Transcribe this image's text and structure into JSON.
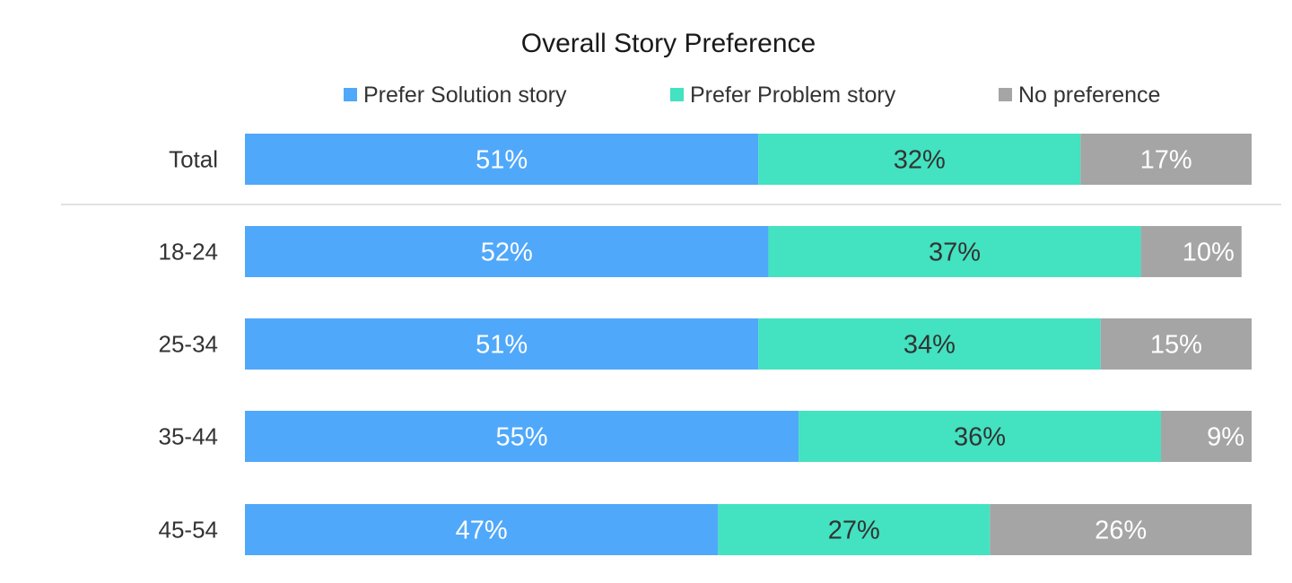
{
  "chart_data": {
    "type": "bar",
    "orientation": "horizontal",
    "stacked": true,
    "title": "Overall Story Preference",
    "categories": [
      "Total",
      "18-24",
      "25-34",
      "35-44",
      "45-54"
    ],
    "series": [
      {
        "name": "Prefer Solution story",
        "color": "#50a8fa",
        "label_color": "#ffffff",
        "values": [
          51,
          52,
          51,
          55,
          47
        ]
      },
      {
        "name": "Prefer Problem story",
        "color": "#43e2c0",
        "label_color": "#333333",
        "values": [
          32,
          37,
          34,
          36,
          27
        ]
      },
      {
        "name": "No preference",
        "color": "#a5a5a5",
        "label_color": "#ffffff",
        "values": [
          17,
          10,
          15,
          9,
          26
        ]
      }
    ],
    "value_suffix": "%",
    "xlim": [
      0,
      100
    ],
    "legend_position": "top",
    "grid": false,
    "separator_after_category": "Total"
  }
}
